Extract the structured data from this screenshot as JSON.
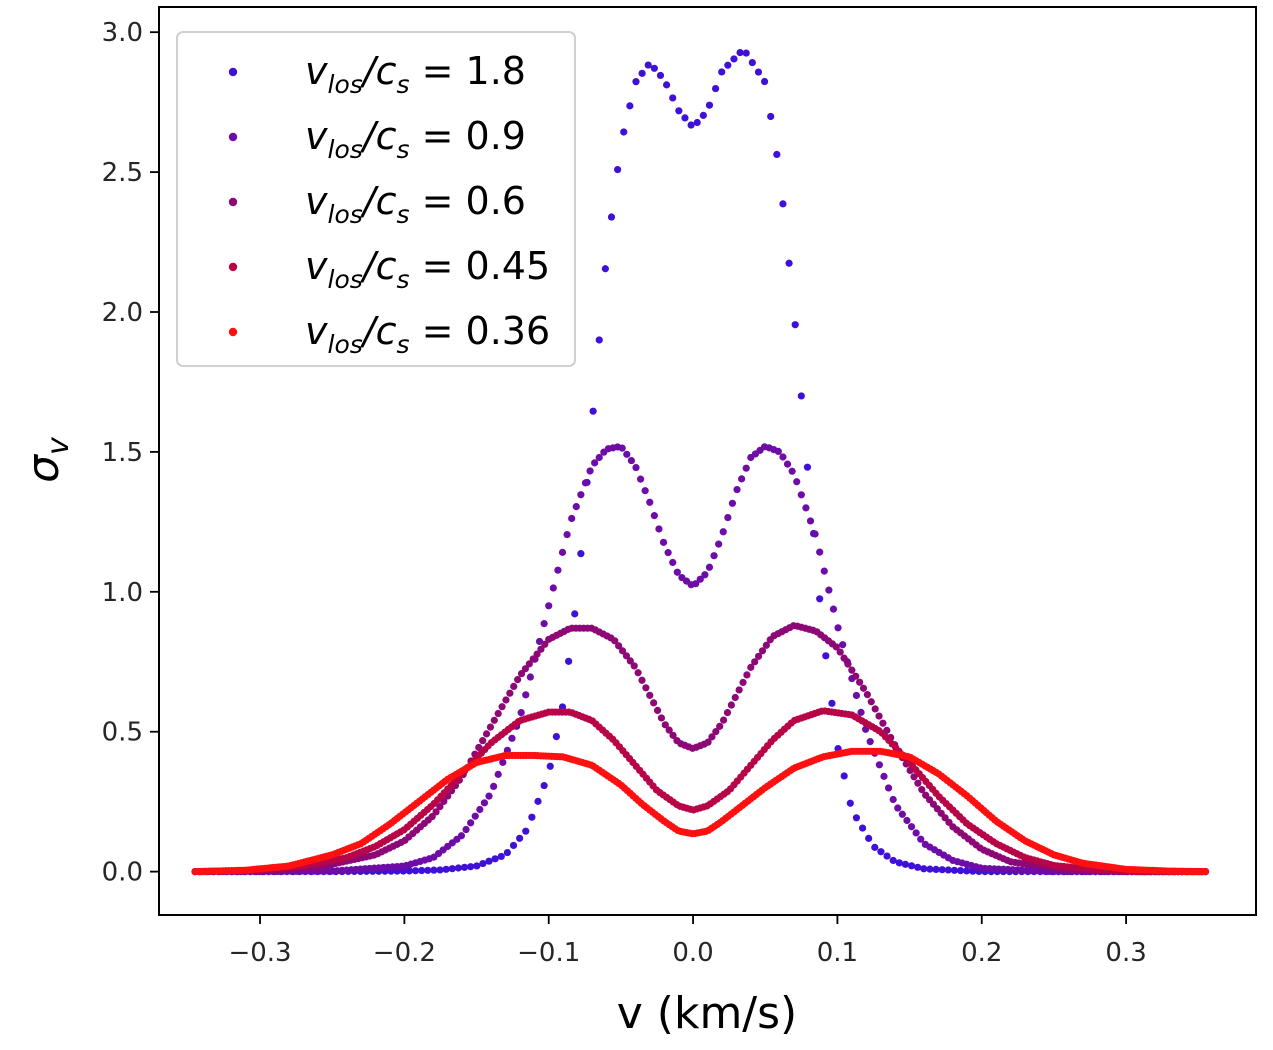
{
  "chart_data": {
    "type": "scatter",
    "title": "",
    "xlabel": "v (km/s)",
    "ylabel": "σ",
    "ylabel_sub": "v",
    "xlim": [
      -0.37,
      0.39
    ],
    "ylim": [
      -0.155,
      3.09
    ],
    "xticks": [
      -0.3,
      -0.2,
      -0.1,
      0.0,
      0.1,
      0.2,
      0.3
    ],
    "xtick_labels": [
      "−0.3",
      "−0.2",
      "−0.1",
      "0.0",
      "0.1",
      "0.2",
      "0.3"
    ],
    "yticks": [
      0.0,
      0.5,
      1.0,
      1.5,
      2.0,
      2.5,
      3.0
    ],
    "ytick_labels": [
      "0.0",
      "0.5",
      "1.0",
      "1.5",
      "2.0",
      "2.5",
      "3.0"
    ],
    "grid": false,
    "legend_position": "top-left",
    "series": [
      {
        "name": "v_los/c_s = 1.8",
        "legend": {
          "main": "v",
          "sub": "los",
          "mid": "/c",
          "sub2": "s",
          "value": " = 1.8"
        },
        "color": "#3f10d8",
        "x": [
          -0.345,
          -0.3,
          -0.25,
          -0.2,
          -0.175,
          -0.15,
          -0.13,
          -0.115,
          -0.1,
          -0.09,
          -0.08,
          -0.07,
          -0.06,
          -0.05,
          -0.04,
          -0.03,
          -0.02,
          -0.01,
          0.0,
          0.01,
          0.02,
          0.035,
          0.05,
          0.06,
          0.07,
          0.08,
          0.09,
          0.1,
          0.11,
          0.125,
          0.14,
          0.16,
          0.2,
          0.25,
          0.3,
          0.355
        ],
        "y": [
          0.0,
          0.0,
          0.0,
          0.002,
          0.006,
          0.02,
          0.06,
          0.15,
          0.35,
          0.6,
          1.0,
          1.6,
          2.2,
          2.6,
          2.82,
          2.89,
          2.83,
          2.72,
          2.66,
          2.72,
          2.86,
          2.94,
          2.82,
          2.5,
          2.0,
          1.4,
          0.85,
          0.45,
          0.22,
          0.09,
          0.035,
          0.01,
          0.0,
          0.0,
          0.0,
          0.0
        ]
      },
      {
        "name": "v_los/c_s = 0.9",
        "legend": {
          "main": "v",
          "sub": "los",
          "mid": "/c",
          "sub2": "s",
          "value": " = 0.9"
        },
        "color": "#6e0ca8",
        "x": [
          -0.345,
          -0.3,
          -0.25,
          -0.2,
          -0.18,
          -0.16,
          -0.14,
          -0.12,
          -0.1,
          -0.085,
          -0.07,
          -0.06,
          -0.05,
          -0.04,
          -0.03,
          -0.02,
          -0.01,
          0.0,
          0.01,
          0.02,
          0.03,
          0.04,
          0.05,
          0.06,
          0.07,
          0.085,
          0.1,
          0.12,
          0.14,
          0.16,
          0.18,
          0.2,
          0.25,
          0.3,
          0.355
        ],
        "y": [
          0.0,
          0.0,
          0.002,
          0.02,
          0.05,
          0.13,
          0.28,
          0.55,
          0.95,
          1.25,
          1.45,
          1.51,
          1.52,
          1.45,
          1.32,
          1.17,
          1.06,
          1.02,
          1.07,
          1.2,
          1.36,
          1.48,
          1.52,
          1.5,
          1.42,
          1.2,
          0.88,
          0.5,
          0.24,
          0.1,
          0.04,
          0.012,
          0.0,
          0.0,
          0.0
        ]
      },
      {
        "name": "v_los/c_s = 0.6",
        "legend": {
          "main": "v",
          "sub": "los",
          "mid": "/c",
          "sub2": "s",
          "value": " = 0.6"
        },
        "color": "#8d0876",
        "x": [
          -0.345,
          -0.3,
          -0.26,
          -0.22,
          -0.2,
          -0.18,
          -0.16,
          -0.14,
          -0.12,
          -0.1,
          -0.085,
          -0.07,
          -0.055,
          -0.04,
          -0.03,
          -0.02,
          -0.01,
          0.0,
          0.01,
          0.02,
          0.03,
          0.04,
          0.055,
          0.07,
          0.085,
          0.1,
          0.12,
          0.14,
          0.16,
          0.18,
          0.2,
          0.22,
          0.26,
          0.3,
          0.355
        ],
        "y": [
          0.0,
          0.002,
          0.015,
          0.06,
          0.11,
          0.2,
          0.34,
          0.52,
          0.7,
          0.83,
          0.87,
          0.87,
          0.83,
          0.73,
          0.63,
          0.53,
          0.46,
          0.44,
          0.46,
          0.53,
          0.63,
          0.73,
          0.84,
          0.88,
          0.86,
          0.8,
          0.64,
          0.45,
          0.28,
          0.16,
          0.08,
          0.035,
          0.006,
          0.0,
          0.0
        ]
      },
      {
        "name": "v_los/c_s = 0.45",
        "legend": {
          "main": "v",
          "sub": "los",
          "mid": "/c",
          "sub2": "s",
          "value": " = 0.45"
        },
        "color": "#b80548",
        "x": [
          -0.345,
          -0.3,
          -0.27,
          -0.24,
          -0.22,
          -0.2,
          -0.18,
          -0.16,
          -0.14,
          -0.12,
          -0.1,
          -0.085,
          -0.07,
          -0.055,
          -0.04,
          -0.025,
          -0.01,
          0.0,
          0.01,
          0.025,
          0.04,
          0.055,
          0.07,
          0.09,
          0.11,
          0.13,
          0.15,
          0.17,
          0.19,
          0.21,
          0.23,
          0.25,
          0.28,
          0.31,
          0.355
        ],
        "y": [
          0.0,
          0.005,
          0.02,
          0.05,
          0.09,
          0.15,
          0.24,
          0.35,
          0.46,
          0.54,
          0.57,
          0.57,
          0.54,
          0.47,
          0.38,
          0.29,
          0.235,
          0.22,
          0.235,
          0.29,
          0.38,
          0.47,
          0.54,
          0.575,
          0.56,
          0.5,
          0.39,
          0.27,
          0.17,
          0.1,
          0.05,
          0.022,
          0.006,
          0.0,
          0.0
        ]
      },
      {
        "name": "v_los/c_s = 0.36",
        "legend": {
          "main": "v",
          "sub": "los",
          "mid": "/c",
          "sub2": "s",
          "value": " = 0.36"
        },
        "color": "#ff1010",
        "x": [
          -0.345,
          -0.31,
          -0.28,
          -0.25,
          -0.23,
          -0.21,
          -0.19,
          -0.17,
          -0.15,
          -0.13,
          -0.11,
          -0.09,
          -0.07,
          -0.05,
          -0.035,
          -0.02,
          -0.01,
          0.0,
          0.01,
          0.02,
          0.035,
          0.05,
          0.07,
          0.09,
          0.11,
          0.13,
          0.15,
          0.17,
          0.19,
          0.21,
          0.23,
          0.25,
          0.27,
          0.3,
          0.33,
          0.355
        ],
        "y": [
          0.0,
          0.005,
          0.02,
          0.06,
          0.1,
          0.17,
          0.25,
          0.33,
          0.39,
          0.415,
          0.415,
          0.41,
          0.38,
          0.31,
          0.24,
          0.18,
          0.145,
          0.135,
          0.145,
          0.18,
          0.24,
          0.3,
          0.37,
          0.41,
          0.43,
          0.43,
          0.41,
          0.35,
          0.27,
          0.18,
          0.11,
          0.06,
          0.03,
          0.008,
          0.002,
          0.0
        ]
      }
    ]
  }
}
